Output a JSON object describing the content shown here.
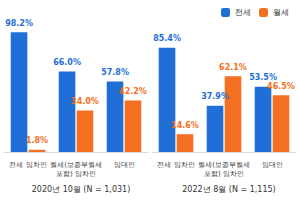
{
  "chart_data": [
    {
      "type": "bar",
      "title": "2020년 10월 (N = 1,031)",
      "categories": [
        "전세 임차인",
        "월세(보증부월세\n포함) 임차인",
        "임대인"
      ],
      "series": [
        {
          "name": "전세",
          "color": "#1f6fd6",
          "values": [
            98.2,
            66.0,
            57.8
          ],
          "value_labels": [
            "98.2%",
            "66.0%",
            "57.8%"
          ]
        },
        {
          "name": "월세",
          "color": "#f36f21",
          "values": [
            1.8,
            34.0,
            42.2
          ],
          "value_labels": [
            "1.8%",
            "34.0%",
            "42.2%"
          ]
        }
      ],
      "ylim": [
        0,
        100
      ],
      "grid": false,
      "data_labels": true,
      "tick_labels": "x"
    },
    {
      "type": "bar",
      "title": "2022년 8월 (N = 1,115)",
      "categories": [
        "전세 임차인",
        "월세(보증부월세\n포함) 임차인",
        "임대인"
      ],
      "series": [
        {
          "name": "전세",
          "color": "#1f6fd6",
          "values": [
            85.4,
            37.9,
            53.5
          ],
          "value_labels": [
            "85.4%",
            "37.9%",
            "53.5%"
          ]
        },
        {
          "name": "월세",
          "color": "#f36f21",
          "values": [
            14.6,
            62.1,
            46.5
          ],
          "value_labels": [
            "14.6%",
            "62.1%",
            "46.5%"
          ]
        }
      ],
      "ylim": [
        0,
        100
      ],
      "grid": false,
      "data_labels": true,
      "tick_labels": "x",
      "legend": "upper right"
    }
  ]
}
